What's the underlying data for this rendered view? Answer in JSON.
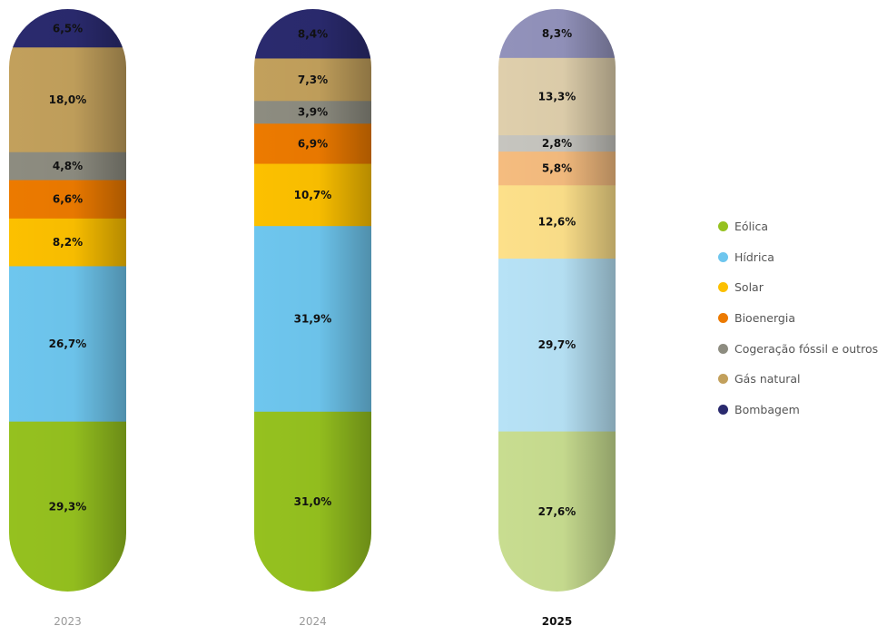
{
  "chart_data": {
    "type": "bar",
    "stacked": true,
    "orientation": "vertical",
    "unit": "%",
    "categories": [
      "2023",
      "2024",
      "2025"
    ],
    "highlighted_category": "2025",
    "series": [
      {
        "name": "Eólica",
        "color": "#95c11f",
        "values": [
          29.3,
          31.0,
          27.6
        ],
        "labels": [
          "29,3%",
          "31,0%",
          "27,6%"
        ]
      },
      {
        "name": "Hídrica",
        "color": "#6ec6ee",
        "values": [
          26.7,
          31.9,
          29.7
        ],
        "labels": [
          "26,7%",
          "31,9%",
          "29,7%"
        ]
      },
      {
        "name": "Solar",
        "color": "#fcc000",
        "values": [
          8.2,
          10.7,
          12.6
        ],
        "labels": [
          "8,2%",
          "10,7%",
          "12,6%"
        ]
      },
      {
        "name": "Bioenergia",
        "color": "#ec7a00",
        "values": [
          6.6,
          6.9,
          5.8
        ],
        "labels": [
          "6,6%",
          "6,9%",
          "5,8%"
        ]
      },
      {
        "name": "Cogeração fóssil e outros",
        "color": "#8d8c80",
        "values": [
          4.8,
          3.9,
          2.8
        ],
        "labels": [
          "4,8%",
          "3,9%",
          "2,8%"
        ]
      },
      {
        "name": "Gás natural",
        "color": "#c2a05c",
        "values": [
          18.0,
          7.3,
          13.3
        ],
        "labels": [
          "18,0%",
          "7,3%",
          "13,3%"
        ]
      },
      {
        "name": "Bombagem",
        "color": "#2a2a6e",
        "values": [
          6.5,
          8.4,
          8.3
        ],
        "labels": [
          "6,5%",
          "8,4%",
          "8,3%"
        ]
      }
    ],
    "light_colors_2025": [
      "#c8dd90",
      "#b7e2f6",
      "#fde08a",
      "#f5bc7f",
      "#c6c5bf",
      "#dfcfac",
      "#9292bb"
    ],
    "legend_position": "right",
    "grid": false
  },
  "legend": {
    "items": [
      {
        "label": "Eólica",
        "color": "#95c11f"
      },
      {
        "label": "Hídrica",
        "color": "#6ec6ee"
      },
      {
        "label": "Solar",
        "color": "#fcc000"
      },
      {
        "label": "Bioenergia",
        "color": "#ec7a00"
      },
      {
        "label": "Cogeração fóssil e outros",
        "color": "#8d8c80"
      },
      {
        "label": "Gás natural",
        "color": "#c2a05c"
      },
      {
        "label": "Bombagem",
        "color": "#2a2a6e"
      }
    ]
  }
}
